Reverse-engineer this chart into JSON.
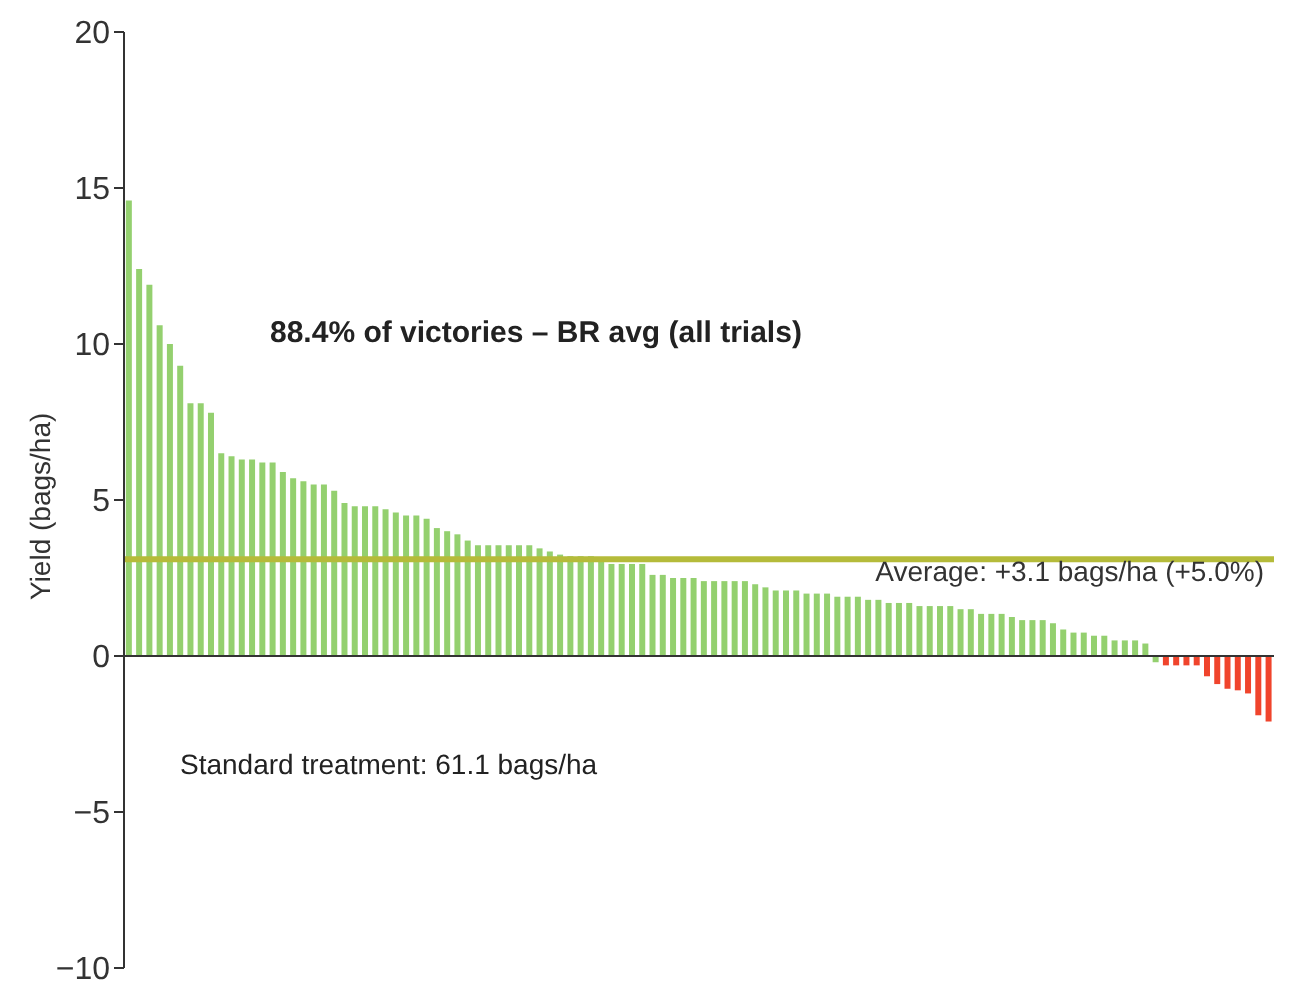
{
  "chart_data": {
    "type": "bar",
    "ylabel": "Yield (bags/ha)",
    "categories": [
      null,
      null,
      null,
      null,
      null,
      null,
      null,
      null,
      null,
      null,
      null,
      null,
      null,
      null,
      null,
      null,
      null,
      null,
      null,
      null,
      null,
      null,
      null,
      null,
      null,
      null,
      null,
      null,
      null,
      null,
      null,
      null,
      null,
      null,
      null,
      null,
      null,
      null,
      null,
      null,
      null,
      null,
      null,
      null,
      null,
      null,
      null,
      null,
      null,
      null,
      null,
      null,
      null,
      null,
      null,
      null,
      null,
      null,
      null,
      null,
      null,
      null,
      null,
      null,
      null,
      null,
      null,
      null,
      null,
      null,
      null,
      null,
      null,
      null,
      null,
      null,
      null,
      null,
      null,
      null,
      null,
      null,
      null,
      null,
      null,
      null,
      null,
      null,
      null,
      null,
      null,
      null,
      null,
      null,
      null,
      null,
      null,
      null,
      null,
      null,
      null,
      null,
      null,
      null,
      null,
      null,
      null,
      null,
      null,
      null,
      null,
      null
    ],
    "values": [
      14.6,
      12.4,
      11.9,
      10.6,
      10.0,
      9.3,
      8.1,
      8.1,
      7.8,
      6.5,
      6.4,
      6.3,
      6.3,
      6.2,
      6.2,
      5.9,
      5.7,
      5.6,
      5.5,
      5.5,
      5.3,
      4.9,
      4.8,
      4.8,
      4.8,
      4.7,
      4.6,
      4.5,
      4.5,
      4.4,
      4.1,
      4.0,
      3.9,
      3.7,
      3.55,
      3.55,
      3.55,
      3.55,
      3.55,
      3.55,
      3.45,
      3.35,
      3.25,
      3.2,
      3.2,
      3.2,
      3.05,
      2.95,
      2.95,
      2.95,
      2.95,
      2.6,
      2.6,
      2.5,
      2.5,
      2.5,
      2.4,
      2.4,
      2.4,
      2.4,
      2.4,
      2.3,
      2.2,
      2.1,
      2.1,
      2.1,
      2.0,
      2.0,
      2.0,
      1.9,
      1.9,
      1.9,
      1.8,
      1.8,
      1.7,
      1.7,
      1.7,
      1.6,
      1.6,
      1.6,
      1.6,
      1.5,
      1.5,
      1.35,
      1.35,
      1.35,
      1.25,
      1.15,
      1.15,
      1.15,
      1.05,
      0.85,
      0.75,
      0.75,
      0.65,
      0.65,
      0.5,
      0.5,
      0.5,
      0.4,
      -0.2,
      -0.3,
      -0.3,
      -0.3,
      -0.3,
      -0.65,
      -0.9,
      -1.05,
      -1.1,
      -1.2,
      -1.9,
      -2.1
    ],
    "colors": [
      "#94d06f",
      "#94d06f",
      "#94d06f",
      "#94d06f",
      "#94d06f",
      "#94d06f",
      "#94d06f",
      "#94d06f",
      "#94d06f",
      "#94d06f",
      "#94d06f",
      "#94d06f",
      "#94d06f",
      "#94d06f",
      "#94d06f",
      "#94d06f",
      "#94d06f",
      "#94d06f",
      "#94d06f",
      "#94d06f",
      "#94d06f",
      "#94d06f",
      "#94d06f",
      "#94d06f",
      "#94d06f",
      "#94d06f",
      "#94d06f",
      "#94d06f",
      "#94d06f",
      "#94d06f",
      "#94d06f",
      "#94d06f",
      "#94d06f",
      "#94d06f",
      "#94d06f",
      "#94d06f",
      "#94d06f",
      "#94d06f",
      "#94d06f",
      "#94d06f",
      "#94d06f",
      "#94d06f",
      "#94d06f",
      "#94d06f",
      "#94d06f",
      "#94d06f",
      "#94d06f",
      "#94d06f",
      "#94d06f",
      "#94d06f",
      "#94d06f",
      "#94d06f",
      "#94d06f",
      "#94d06f",
      "#94d06f",
      "#94d06f",
      "#94d06f",
      "#94d06f",
      "#94d06f",
      "#94d06f",
      "#94d06f",
      "#94d06f",
      "#94d06f",
      "#94d06f",
      "#94d06f",
      "#94d06f",
      "#94d06f",
      "#94d06f",
      "#94d06f",
      "#94d06f",
      "#94d06f",
      "#94d06f",
      "#94d06f",
      "#94d06f",
      "#94d06f",
      "#94d06f",
      "#94d06f",
      "#94d06f",
      "#94d06f",
      "#94d06f",
      "#94d06f",
      "#94d06f",
      "#94d06f",
      "#94d06f",
      "#94d06f",
      "#94d06f",
      "#94d06f",
      "#94d06f",
      "#94d06f",
      "#94d06f",
      "#94d06f",
      "#94d06f",
      "#94d06f",
      "#94d06f",
      "#94d06f",
      "#94d06f",
      "#94d06f",
      "#94d06f",
      "#94d06f",
      "#94d06f",
      "#94d06f",
      "#f0442c",
      "#f0442c",
      "#f0442c",
      "#f0442c",
      "#f0442c",
      "#f0442c",
      "#f0442c",
      "#f0442c",
      "#f0442c",
      "#f0442c",
      "#f0442c"
    ],
    "ylim": [
      -10,
      20
    ],
    "yticks": [
      -10,
      -5,
      0,
      5,
      10,
      15,
      20
    ],
    "legend": false,
    "ref_lines": [
      {
        "axis": "y",
        "value": 3.1,
        "label": "Average: +3.1 bags/ha (+5.0%)",
        "color": "#b5bb3a"
      }
    ],
    "annotations": [
      "88.4% of victories – BR avg (all trials)",
      "Standard treatment: 61.1 bags/ha"
    ]
  }
}
